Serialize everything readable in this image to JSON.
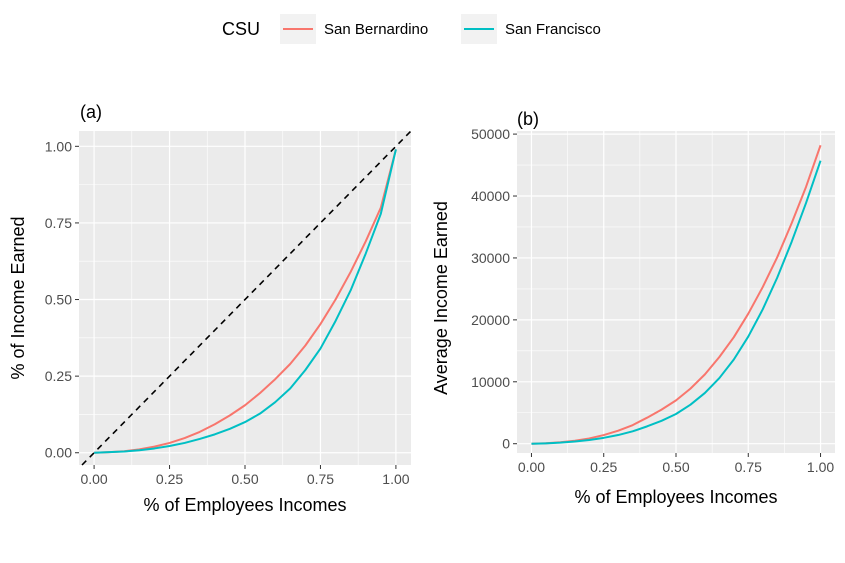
{
  "legend": {
    "title": "CSU",
    "entries": [
      {
        "label": "San Bernardino",
        "color": "#F8766D"
      },
      {
        "label": "San Francisco",
        "color": "#00BFC4"
      }
    ]
  },
  "panel_background": "#EBEBEB",
  "grid_color": "#FFFFFF",
  "chart_data": [
    {
      "type": "line",
      "panel_label": "(a)",
      "xlabel": "% of Employees Incomes",
      "ylabel": "% of Income Earned",
      "xlim": [
        -0.05,
        1.05
      ],
      "ylim": [
        -0.04,
        1.05
      ],
      "xticks": [
        0,
        0.25,
        0.5,
        0.75,
        1
      ],
      "xtick_labels": [
        "0.00",
        "0.25",
        "0.50",
        "0.75",
        "1.00"
      ],
      "yticks": [
        0,
        0.25,
        0.5,
        0.75,
        1
      ],
      "ytick_labels": [
        "0.00",
        "0.25",
        "0.50",
        "0.75",
        "1.00"
      ],
      "grid": true,
      "reference_line": {
        "style": "dashed",
        "color": "#000000",
        "slope": 1,
        "intercept": 0
      },
      "series": [
        {
          "name": "San Bernardino",
          "color": "#F8766D",
          "x": [
            0,
            0.05,
            0.1,
            0.15,
            0.2,
            0.25,
            0.3,
            0.35,
            0.4,
            0.45,
            0.5,
            0.55,
            0.6,
            0.65,
            0.7,
            0.75,
            0.8,
            0.85,
            0.9,
            0.95,
            1
          ],
          "y": [
            0,
            0.002,
            0.005,
            0.011,
            0.02,
            0.032,
            0.048,
            0.068,
            0.093,
            0.122,
            0.155,
            0.195,
            0.24,
            0.29,
            0.35,
            0.42,
            0.5,
            0.59,
            0.69,
            0.8,
            0.99
          ]
        },
        {
          "name": "San Francisco",
          "color": "#00BFC4",
          "x": [
            0,
            0.05,
            0.1,
            0.15,
            0.2,
            0.25,
            0.3,
            0.35,
            0.4,
            0.45,
            0.5,
            0.55,
            0.6,
            0.65,
            0.7,
            0.75,
            0.8,
            0.85,
            0.9,
            0.95,
            1
          ],
          "y": [
            0,
            0.002,
            0.004,
            0.008,
            0.014,
            0.022,
            0.032,
            0.045,
            0.06,
            0.078,
            0.1,
            0.128,
            0.165,
            0.21,
            0.27,
            0.34,
            0.43,
            0.53,
            0.65,
            0.78,
            0.99
          ]
        }
      ]
    },
    {
      "type": "line",
      "panel_label": "(b)",
      "xlabel": "% of Employees Incomes",
      "ylabel": "Average Income Earned",
      "xlim": [
        -0.05,
        1.05
      ],
      "ylim": [
        -1500,
        50500
      ],
      "xticks": [
        0,
        0.25,
        0.5,
        0.75,
        1
      ],
      "xtick_labels": [
        "0.00",
        "0.25",
        "0.50",
        "0.75",
        "1.00"
      ],
      "yticks": [
        0,
        10000,
        20000,
        30000,
        40000,
        50000
      ],
      "ytick_labels": [
        "0",
        "10000",
        "20000",
        "30000",
        "40000",
        "50000"
      ],
      "grid": true,
      "series": [
        {
          "name": "San Bernardino",
          "color": "#F8766D",
          "x": [
            0,
            0.05,
            0.1,
            0.15,
            0.2,
            0.25,
            0.3,
            0.35,
            0.4,
            0.45,
            0.5,
            0.55,
            0.6,
            0.65,
            0.7,
            0.75,
            0.8,
            0.85,
            0.9,
            0.95,
            1
          ],
          "y": [
            0,
            80,
            230,
            480,
            850,
            1400,
            2100,
            3000,
            4200,
            5500,
            7000,
            8900,
            11200,
            14000,
            17200,
            21000,
            25300,
            30100,
            35600,
            41500,
            48200
          ]
        },
        {
          "name": "San Francisco",
          "color": "#00BFC4",
          "x": [
            0,
            0.05,
            0.1,
            0.15,
            0.2,
            0.25,
            0.3,
            0.35,
            0.4,
            0.45,
            0.5,
            0.55,
            0.6,
            0.65,
            0.7,
            0.75,
            0.8,
            0.85,
            0.9,
            0.95,
            1
          ],
          "y": [
            0,
            60,
            170,
            350,
            600,
            950,
            1400,
            2000,
            2800,
            3700,
            4800,
            6300,
            8200,
            10600,
            13600,
            17300,
            21700,
            26800,
            32600,
            38900,
            45700
          ]
        }
      ]
    }
  ]
}
